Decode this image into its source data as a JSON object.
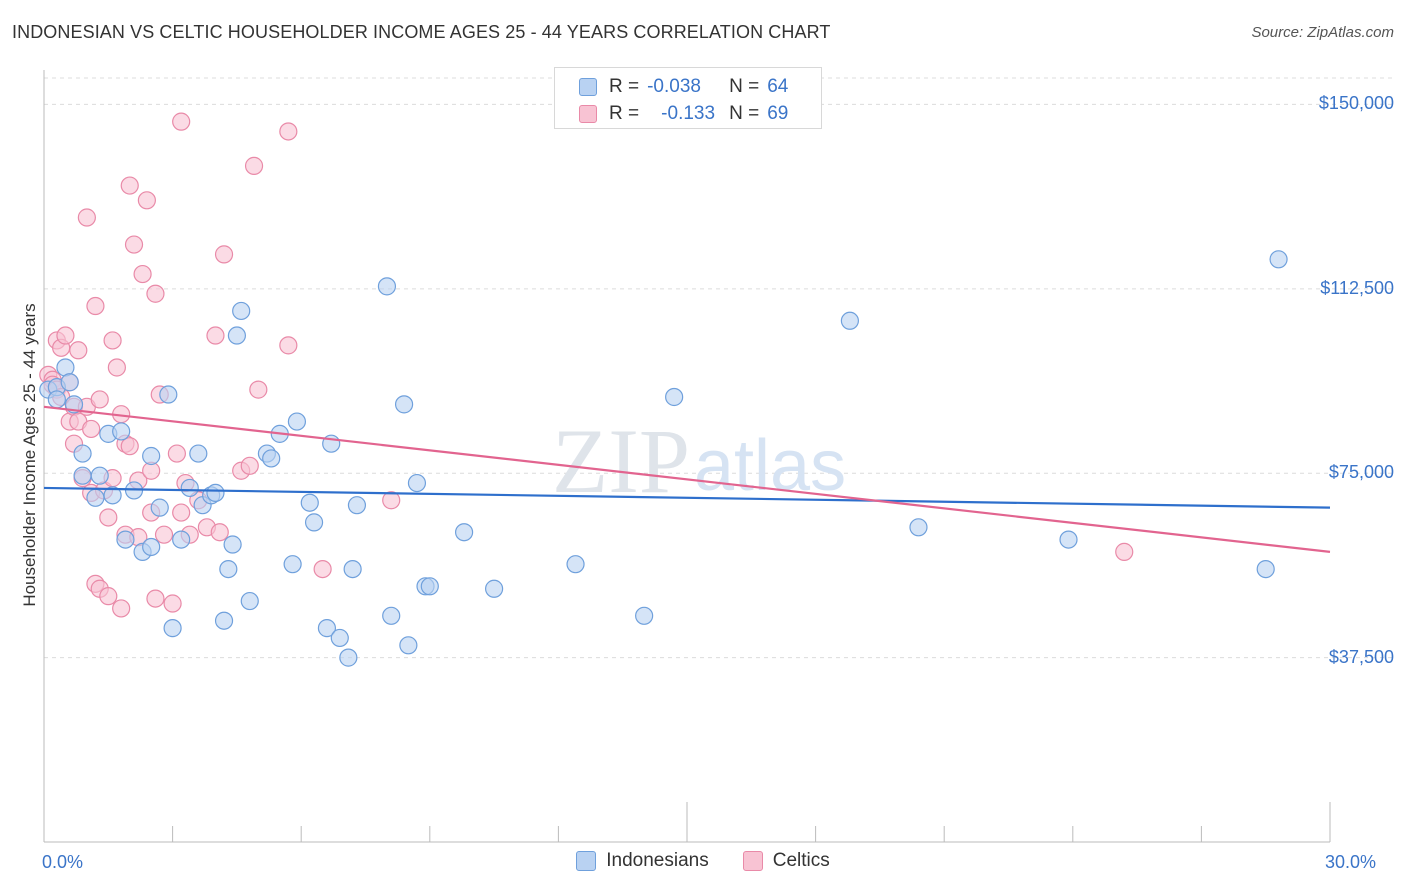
{
  "title": "INDONESIAN VS CELTIC HOUSEHOLDER INCOME AGES 25 - 44 YEARS CORRELATION CHART",
  "source": "Source: ZipAtlas.com",
  "watermark": {
    "zip": "ZIP",
    "atlas": "atlas"
  },
  "legend": {
    "r_label": "R =",
    "n_label": "N =",
    "entries": [
      {
        "name": "Indonesians",
        "r": "-0.038",
        "n": "64",
        "fill": "#b9d2f2",
        "stroke": "#6fa0dc"
      },
      {
        "name": "Celtics",
        "r": "-0.133",
        "n": "69",
        "fill": "#f8c3d3",
        "stroke": "#e98aa8"
      }
    ]
  },
  "colors": {
    "blue_line": "#2e6fcc",
    "pink_line": "#e2648f",
    "tick_text": "#3a74c8",
    "grid": "#dcdcdc"
  },
  "chart_data": {
    "type": "scatter",
    "xlabel": "",
    "ylabel": "Householder Income Ages 25 - 44 years",
    "xlim": [
      0,
      30
    ],
    "ylim": [
      0,
      157000
    ],
    "x_tick_labels": [
      "0.0%",
      "30.0%"
    ],
    "y_ticks": [
      {
        "value": 37500,
        "label": "$37,500"
      },
      {
        "value": 75000,
        "label": "$75,000"
      },
      {
        "value": 112500,
        "label": "$112,500"
      },
      {
        "value": 150000,
        "label": "$150,000"
      }
    ],
    "series": [
      {
        "name": "Indonesians",
        "trend": {
          "x": [
            0,
            30
          ],
          "y": [
            72000,
            68000
          ]
        },
        "points": [
          [
            0.1,
            92000
          ],
          [
            0.3,
            92500
          ],
          [
            0.3,
            90000
          ],
          [
            0.5,
            96500
          ],
          [
            0.6,
            93500
          ],
          [
            0.7,
            89000
          ],
          [
            0.9,
            79000
          ],
          [
            0.9,
            74500
          ],
          [
            1.2,
            70000
          ],
          [
            1.3,
            74500
          ],
          [
            1.5,
            83000
          ],
          [
            1.6,
            70500
          ],
          [
            1.8,
            83500
          ],
          [
            1.9,
            61500
          ],
          [
            2.1,
            71500
          ],
          [
            2.3,
            59000
          ],
          [
            2.5,
            60000
          ],
          [
            2.5,
            78500
          ],
          [
            2.7,
            68000
          ],
          [
            2.9,
            91000
          ],
          [
            3.0,
            43500
          ],
          [
            3.2,
            61500
          ],
          [
            3.4,
            72000
          ],
          [
            3.6,
            79000
          ],
          [
            3.7,
            68500
          ],
          [
            3.9,
            70500
          ],
          [
            4.0,
            71000
          ],
          [
            4.2,
            45000
          ],
          [
            4.3,
            55500
          ],
          [
            4.4,
            60500
          ],
          [
            4.5,
            103000
          ],
          [
            4.6,
            108000
          ],
          [
            4.8,
            49000
          ],
          [
            5.2,
            79000
          ],
          [
            5.3,
            78000
          ],
          [
            5.5,
            83000
          ],
          [
            5.8,
            56500
          ],
          [
            5.9,
            85500
          ],
          [
            6.2,
            69000
          ],
          [
            6.3,
            65000
          ],
          [
            6.6,
            43500
          ],
          [
            6.7,
            81000
          ],
          [
            6.9,
            41500
          ],
          [
            7.1,
            37500
          ],
          [
            7.2,
            55500
          ],
          [
            7.3,
            68500
          ],
          [
            8.0,
            113000
          ],
          [
            8.1,
            46000
          ],
          [
            8.4,
            89000
          ],
          [
            8.5,
            40000
          ],
          [
            8.7,
            73000
          ],
          [
            8.9,
            52000
          ],
          [
            9.0,
            52000
          ],
          [
            9.8,
            63000
          ],
          [
            10.5,
            51500
          ],
          [
            12.4,
            56500
          ],
          [
            14.0,
            46000
          ],
          [
            14.7,
            90500
          ],
          [
            18.8,
            106000
          ],
          [
            20.4,
            64000
          ],
          [
            23.9,
            61500
          ],
          [
            28.5,
            55500
          ],
          [
            28.8,
            118500
          ]
        ]
      },
      {
        "name": "Celtics",
        "trend": {
          "x": [
            0,
            30
          ],
          "y": [
            88500,
            59000
          ]
        },
        "points": [
          [
            0.1,
            95000
          ],
          [
            0.2,
            94000
          ],
          [
            0.2,
            93000
          ],
          [
            0.3,
            92000
          ],
          [
            0.3,
            102000
          ],
          [
            0.4,
            100500
          ],
          [
            0.4,
            90500
          ],
          [
            0.5,
            103000
          ],
          [
            0.6,
            85500
          ],
          [
            0.6,
            93500
          ],
          [
            0.7,
            88500
          ],
          [
            0.7,
            81000
          ],
          [
            0.8,
            100000
          ],
          [
            0.8,
            85500
          ],
          [
            0.9,
            74000
          ],
          [
            1.0,
            127000
          ],
          [
            1.0,
            88500
          ],
          [
            1.1,
            84000
          ],
          [
            1.1,
            71000
          ],
          [
            1.2,
            109000
          ],
          [
            1.2,
            52500
          ],
          [
            1.3,
            90000
          ],
          [
            1.3,
            51500
          ],
          [
            1.4,
            71500
          ],
          [
            1.5,
            66000
          ],
          [
            1.5,
            50000
          ],
          [
            1.6,
            102000
          ],
          [
            1.6,
            74000
          ],
          [
            1.7,
            96500
          ],
          [
            1.8,
            87000
          ],
          [
            1.8,
            47500
          ],
          [
            1.9,
            81000
          ],
          [
            1.9,
            62500
          ],
          [
            2.0,
            133500
          ],
          [
            2.0,
            80500
          ],
          [
            2.1,
            121500
          ],
          [
            2.2,
            73500
          ],
          [
            2.2,
            62000
          ],
          [
            2.3,
            115500
          ],
          [
            2.4,
            130500
          ],
          [
            2.5,
            75500
          ],
          [
            2.5,
            67000
          ],
          [
            2.6,
            111500
          ],
          [
            2.6,
            49500
          ],
          [
            2.7,
            91000
          ],
          [
            2.8,
            62500
          ],
          [
            3.0,
            48500
          ],
          [
            3.1,
            79000
          ],
          [
            3.2,
            67000
          ],
          [
            3.2,
            146500
          ],
          [
            3.3,
            73000
          ],
          [
            3.4,
            62500
          ],
          [
            3.6,
            69500
          ],
          [
            3.8,
            64000
          ],
          [
            4.0,
            103000
          ],
          [
            4.1,
            63000
          ],
          [
            4.2,
            119500
          ],
          [
            4.6,
            75500
          ],
          [
            4.8,
            76500
          ],
          [
            4.9,
            137500
          ],
          [
            5.0,
            92000
          ],
          [
            5.7,
            144500
          ],
          [
            5.7,
            101000
          ],
          [
            6.5,
            55500
          ],
          [
            8.1,
            69500
          ],
          [
            25.2,
            59000
          ]
        ]
      }
    ]
  }
}
